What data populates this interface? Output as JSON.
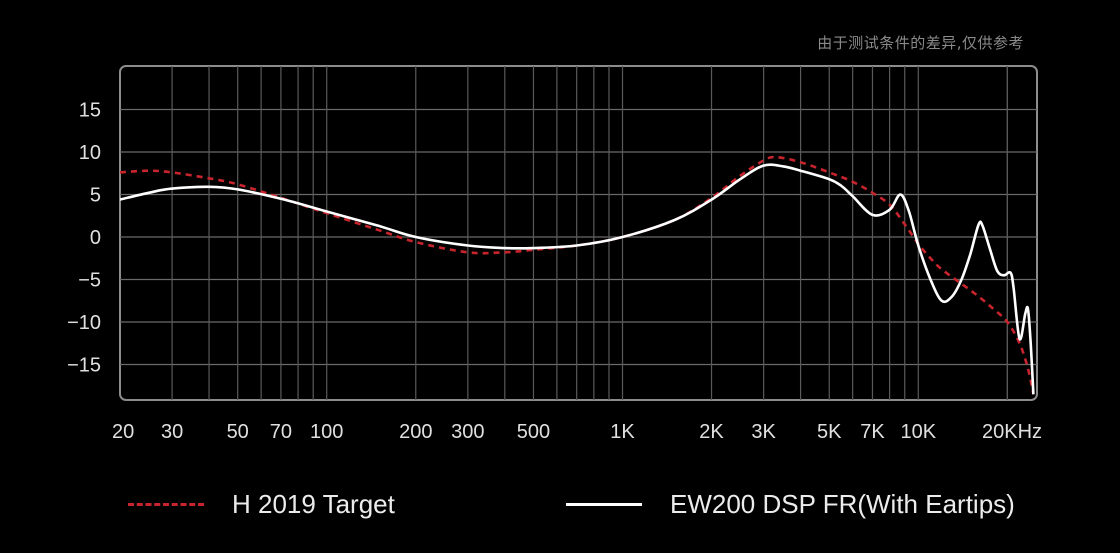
{
  "note": "由于测试条件的差异,仅供参考",
  "chart_data": {
    "type": "line",
    "title": "",
    "xlabel": "",
    "ylabel": "",
    "x_scale": "log",
    "xlim": [
      20,
      20000
    ],
    "ylim": [
      -19,
      20
    ],
    "grid": true,
    "legend_position": "bottom",
    "y_ticks": [
      15,
      10,
      5,
      0,
      -5,
      -10,
      -15
    ],
    "x_ticks": [
      {
        "value": 20,
        "label": "20"
      },
      {
        "value": 30,
        "label": "30"
      },
      {
        "value": 50,
        "label": "50"
      },
      {
        "value": 70,
        "label": "70"
      },
      {
        "value": 100,
        "label": "100"
      },
      {
        "value": 200,
        "label": "200"
      },
      {
        "value": 300,
        "label": "300"
      },
      {
        "value": 500,
        "label": "500"
      },
      {
        "value": 1000,
        "label": "1K"
      },
      {
        "value": 2000,
        "label": "2K"
      },
      {
        "value": 3000,
        "label": "3K"
      },
      {
        "value": 5000,
        "label": "5K"
      },
      {
        "value": 7000,
        "label": "7K"
      },
      {
        "value": 10000,
        "label": "10K"
      },
      {
        "value": 20000,
        "label": "20KHz"
      }
    ],
    "series": [
      {
        "name": "H 2019  Target",
        "color": "#c8242d",
        "style": "dashed",
        "points": [
          [
            20,
            7.6
          ],
          [
            25,
            7.8
          ],
          [
            30,
            7.6
          ],
          [
            40,
            6.9
          ],
          [
            50,
            6.2
          ],
          [
            70,
            4.6
          ],
          [
            100,
            2.8
          ],
          [
            150,
            0.8
          ],
          [
            200,
            -0.6
          ],
          [
            300,
            -1.8
          ],
          [
            400,
            -1.8
          ],
          [
            500,
            -1.5
          ],
          [
            700,
            -1.0
          ],
          [
            1000,
            0.0
          ],
          [
            1500,
            2.0
          ],
          [
            2000,
            4.6
          ],
          [
            2500,
            7.2
          ],
          [
            3000,
            9.0
          ],
          [
            3300,
            9.4
          ],
          [
            4000,
            8.8
          ],
          [
            5000,
            7.6
          ],
          [
            6000,
            6.5
          ],
          [
            7000,
            5.2
          ],
          [
            8000,
            3.8
          ],
          [
            9000,
            1.5
          ],
          [
            10000,
            -0.8
          ],
          [
            11000,
            -2.5
          ],
          [
            12000,
            -3.8
          ],
          [
            14000,
            -5.5
          ],
          [
            16000,
            -7.0
          ],
          [
            18000,
            -8.5
          ],
          [
            20000,
            -10.0
          ],
          [
            22000,
            -12.5
          ],
          [
            23500,
            -15.5
          ],
          [
            24500,
            -18.5
          ]
        ]
      },
      {
        "name": "EW200 DSP FR(With Eartips)",
        "color": "#ffffff",
        "style": "solid",
        "points": [
          [
            20,
            4.4
          ],
          [
            25,
            5.2
          ],
          [
            30,
            5.7
          ],
          [
            40,
            5.9
          ],
          [
            50,
            5.6
          ],
          [
            70,
            4.5
          ],
          [
            100,
            3.0
          ],
          [
            150,
            1.3
          ],
          [
            200,
            0.0
          ],
          [
            300,
            -1.0
          ],
          [
            400,
            -1.3
          ],
          [
            500,
            -1.3
          ],
          [
            700,
            -1.0
          ],
          [
            1000,
            0.0
          ],
          [
            1500,
            2.0
          ],
          [
            2000,
            4.4
          ],
          [
            2500,
            6.8
          ],
          [
            3000,
            8.4
          ],
          [
            3500,
            8.3
          ],
          [
            4000,
            7.8
          ],
          [
            5000,
            6.8
          ],
          [
            5500,
            6.0
          ],
          [
            6000,
            4.8
          ],
          [
            7000,
            2.6
          ],
          [
            8000,
            3.2
          ],
          [
            8700,
            5.0
          ],
          [
            9300,
            3.0
          ],
          [
            10000,
            -1.0
          ],
          [
            11000,
            -5.0
          ],
          [
            12000,
            -7.5
          ],
          [
            13000,
            -7.0
          ],
          [
            14000,
            -5.0
          ],
          [
            15000,
            -2.0
          ],
          [
            16000,
            1.5
          ],
          [
            16500,
            1.3
          ],
          [
            17500,
            -1.5
          ],
          [
            18500,
            -4.0
          ],
          [
            19500,
            -4.5
          ],
          [
            20500,
            -4.2
          ],
          [
            21000,
            -6.0
          ],
          [
            22000,
            -12.0
          ],
          [
            23000,
            -9.0
          ],
          [
            23500,
            -8.5
          ],
          [
            24000,
            -12.5
          ],
          [
            24500,
            -18.5
          ]
        ]
      }
    ]
  },
  "legend": [
    {
      "label": "H 2019  Target"
    },
    {
      "label": "EW200 DSP FR(With Eartips)"
    }
  ]
}
